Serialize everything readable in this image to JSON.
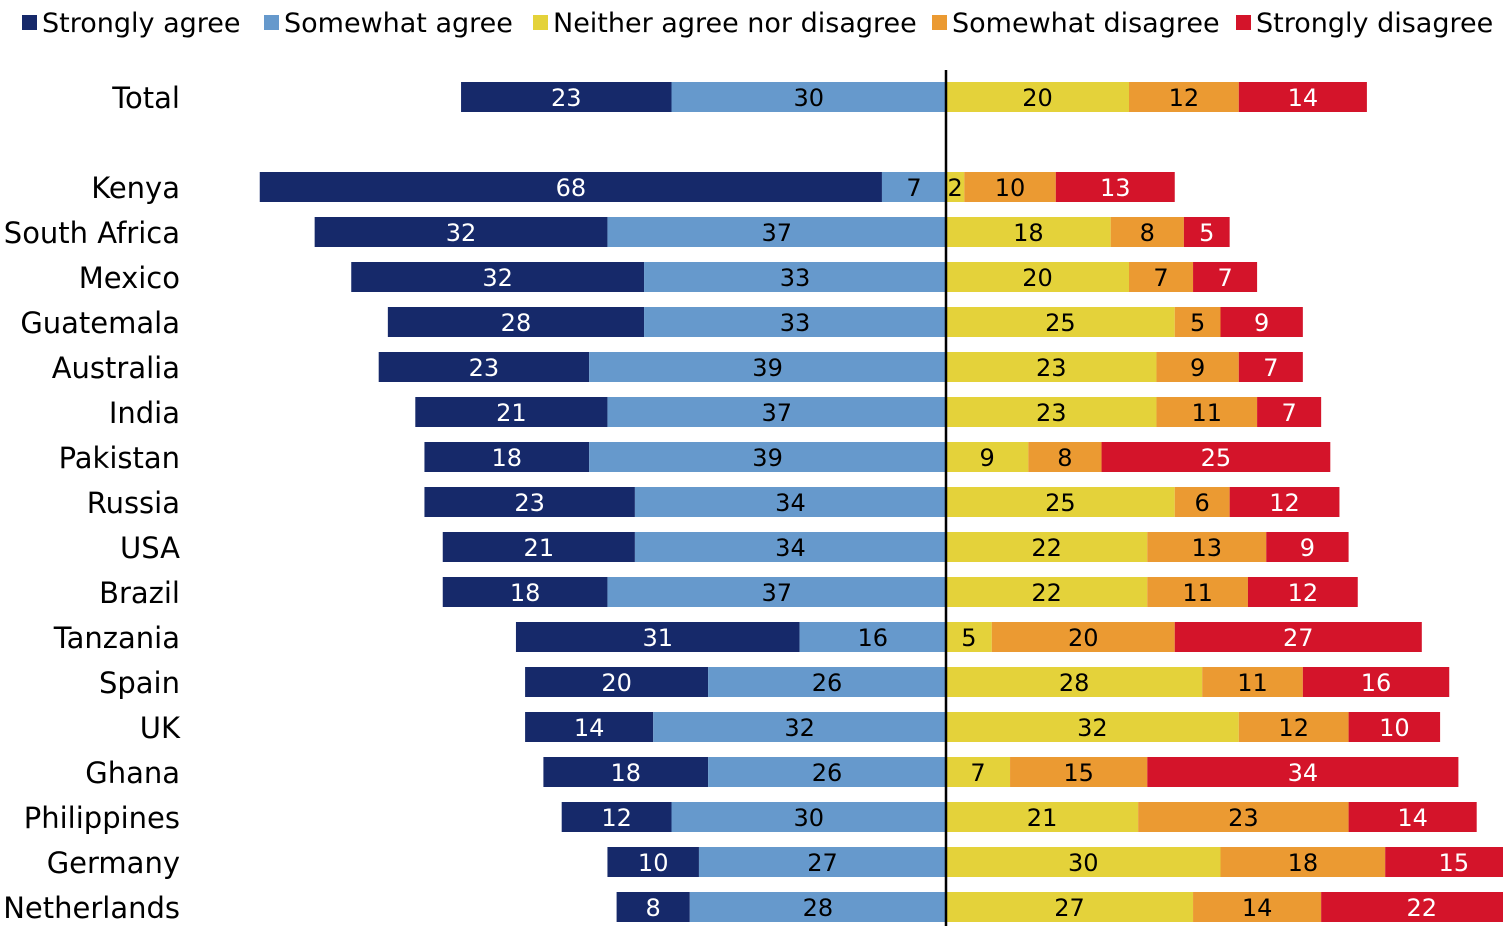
{
  "chart_data": {
    "type": "bar",
    "orientation": "horizontal",
    "layout": "diverging-stacked",
    "legend_position": "top",
    "gridlines": false,
    "series": [
      {
        "name": "Strongly agree",
        "color": "#16296a",
        "side": "left",
        "label_color": "#ffffff"
      },
      {
        "name": "Somewhat agree",
        "color": "#6699cc",
        "side": "left",
        "label_color": "#000000"
      },
      {
        "name": "Neither agree nor disagree",
        "color": "#e4d23a",
        "side": "right",
        "label_color": "#000000"
      },
      {
        "name": "Somewhat disagree",
        "color": "#eb9a32",
        "side": "right",
        "label_color": "#000000"
      },
      {
        "name": "Strongly disagree",
        "color": "#d4142a",
        "side": "right",
        "label_color": "#ffffff"
      }
    ],
    "categories": [
      "Total",
      "Kenya",
      "South Africa",
      "Mexico",
      "Guatemala",
      "Australia",
      "India",
      "Pakistan",
      "Russia",
      "USA",
      "Brazil",
      "Tanzania",
      "Spain",
      "UK",
      "Ghana",
      "Philippines",
      "Germany",
      "Netherlands"
    ],
    "values": [
      [
        23,
        30,
        20,
        12,
        14
      ],
      [
        68,
        7,
        2,
        10,
        13
      ],
      [
        32,
        37,
        18,
        8,
        5
      ],
      [
        32,
        33,
        20,
        7,
        7
      ],
      [
        28,
        33,
        25,
        5,
        9
      ],
      [
        23,
        39,
        23,
        9,
        7
      ],
      [
        21,
        37,
        23,
        11,
        7
      ],
      [
        18,
        39,
        9,
        8,
        25
      ],
      [
        23,
        34,
        25,
        6,
        12
      ],
      [
        21,
        34,
        22,
        13,
        9
      ],
      [
        18,
        37,
        22,
        11,
        12
      ],
      [
        31,
        16,
        5,
        20,
        27
      ],
      [
        20,
        26,
        28,
        11,
        16
      ],
      [
        14,
        32,
        32,
        12,
        10
      ],
      [
        18,
        26,
        7,
        15,
        34
      ],
      [
        12,
        30,
        21,
        23,
        14
      ],
      [
        10,
        27,
        30,
        18,
        15
      ],
      [
        8,
        28,
        27,
        14,
        22
      ]
    ]
  }
}
